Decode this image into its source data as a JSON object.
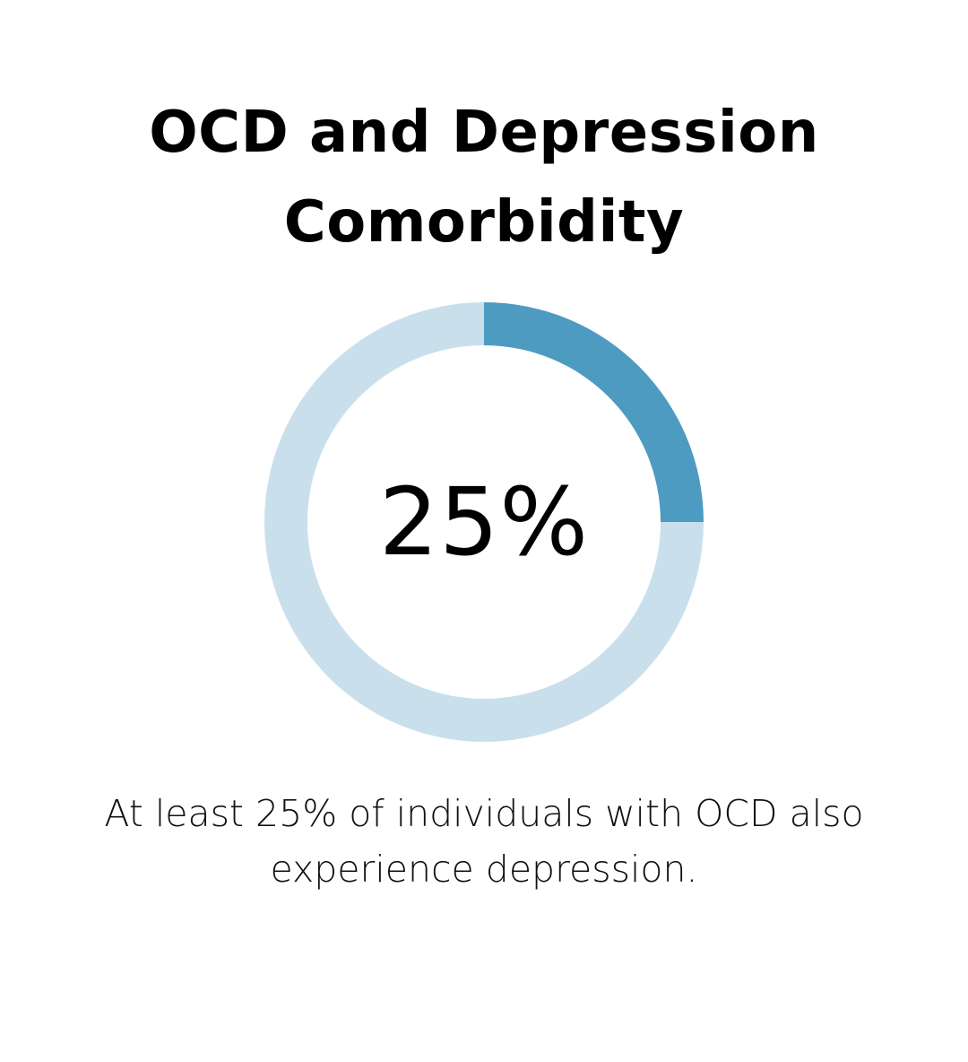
{
  "title_lines": [
    "OCD and Depression",
    "Comorbidity"
  ],
  "center_label": "25%",
  "caption_lines": [
    "At least 25% of individuals with OCD also",
    "experience depression."
  ],
  "colors": {
    "accent": "#4e9bc2",
    "track": "#c9e0ec",
    "text": "#000000"
  },
  "chart_data": {
    "type": "pie",
    "variant": "donut",
    "categories": [
      "",
      ""
    ],
    "values": [
      25,
      75
    ],
    "title": "OCD and Depression Comorbidity"
  }
}
